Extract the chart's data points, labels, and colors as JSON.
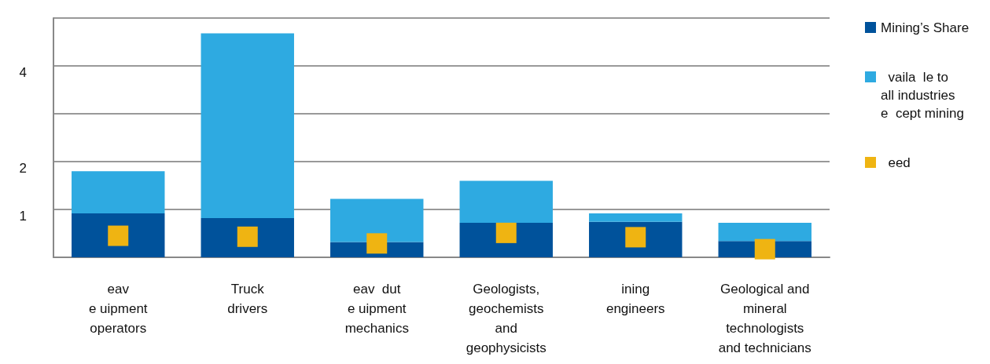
{
  "chart_data": {
    "type": "bar",
    "stacked": true,
    "categories": [
      "eav\ne uipment\noperators",
      "Truck\ndrivers",
      "eav  dut\ne uipment\nmechanics",
      "Geologists,\ngeochemists\nand\ngeophysicists",
      "ining\nengineers",
      "Geological and\nmineral\ntechnologists\nand technicians"
    ],
    "series": [
      {
        "name": "Mining’s Share",
        "color": "#00529b",
        "values": [
          0.92,
          0.82,
          0.32,
          0.72,
          0.74,
          0.34
        ]
      },
      {
        "name": "  vaila  le to\nall industries\ne  cept mining",
        "color": "#2eaae1",
        "values": [
          0.88,
          3.86,
          0.9,
          0.88,
          0.18,
          0.38
        ]
      },
      {
        "name": "  eed",
        "type": "scatter",
        "color": "#efb412",
        "x": [
          "eav\ne uipment\noperators",
          "Truck\ndrivers",
          "eav  dut\ne uipment\nmechanics",
          "Geologists,\ngeochemists\nand\ngeophysicists",
          "ining\nengineers",
          "Geological and\nmineral\ntechnologists\nand technicians"
        ],
        "values": [
          0.45,
          0.43,
          0.29,
          0.51,
          0.42,
          0.17
        ]
      }
    ],
    "ylim": [
      0,
      5
    ],
    "yticks": [
      {
        "value": 0,
        "label": null
      },
      1,
      2,
      {
        "value": 3,
        "label": null
      },
      4,
      {
        "value": 5,
        "label": null
      }
    ],
    "grid": "y",
    "legend": "right",
    "marker": "square"
  }
}
